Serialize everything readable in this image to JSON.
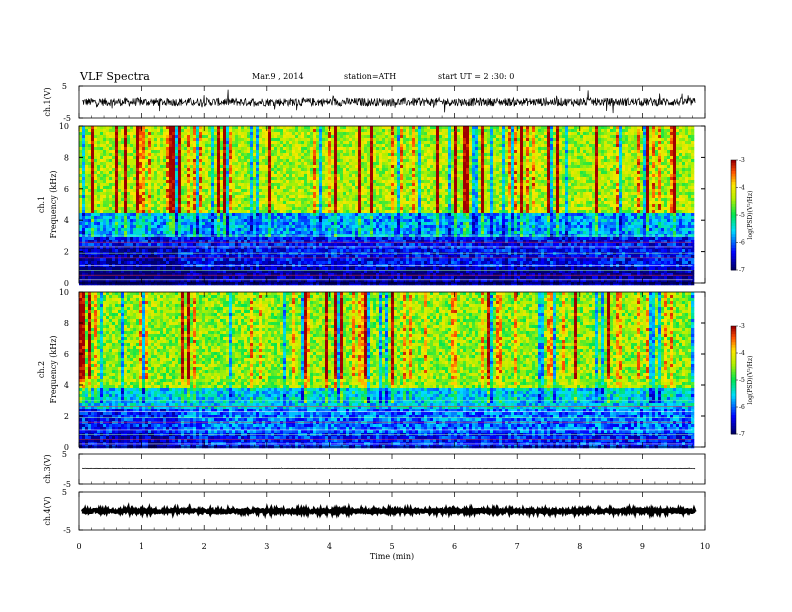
{
  "header": {
    "title": "VLF Spectra",
    "date": "Mar.9 , 2014",
    "station": "station=ATH",
    "start": "start UT = 2 :30: 0"
  },
  "chart_data": [
    {
      "type": "line",
      "panel": "ch1-waveform",
      "ylabel": "ch.1(V)",
      "ylim": [
        -5,
        5
      ],
      "yticks": [
        "5",
        "-5"
      ],
      "xlim": [
        0,
        10
      ],
      "trace": {
        "mean": 0,
        "amplitude": 1.3,
        "spike_amplitude": 3.0,
        "color": "#000000"
      }
    },
    {
      "type": "heatmap",
      "panel": "ch1-spectrogram",
      "ylabel": "ch.1\nFrequency (kHz)",
      "ylim": [
        0,
        10
      ],
      "yticks": [
        "0",
        "2",
        "4",
        "6",
        "8",
        "10"
      ],
      "xlim": [
        0,
        10
      ],
      "data_end_min": 9.8,
      "colorbar": {
        "label": "log(PSD)(V²/Hz)",
        "range": [
          -7,
          -3
        ],
        "ticks": [
          "-3",
          "-4",
          "-5",
          "-6",
          "-7"
        ]
      },
      "level_bands_kHz": [
        {
          "from": 0,
          "to": 1.2,
          "level": -6.8
        },
        {
          "from": 1.2,
          "to": 3.0,
          "level": -6.4
        },
        {
          "from": 3.0,
          "to": 4.5,
          "level": -5.8
        },
        {
          "from": 4.5,
          "to": 10,
          "level": -4.4
        }
      ],
      "step_change_min": 1.55
    },
    {
      "type": "heatmap",
      "panel": "ch2-spectrogram",
      "ylabel": "ch.2\nFrequency (kHz)",
      "ylim": [
        0,
        10
      ],
      "yticks": [
        "0",
        "2",
        "4",
        "6",
        "8",
        "10"
      ],
      "xlim": [
        0,
        10
      ],
      "data_end_min": 9.8,
      "colorbar": {
        "label": "log(PSD)(V²/Hz)",
        "range": [
          -7,
          -3
        ],
        "ticks": [
          "-3",
          "-4",
          "-5",
          "-6",
          "-7"
        ]
      },
      "level_bands_kHz": [
        {
          "from": 0,
          "to": 1.0,
          "level": -6.3
        },
        {
          "from": 1.0,
          "to": 2.5,
          "level": -6.0
        },
        {
          "from": 2.5,
          "to": 4.0,
          "level": -5.6
        },
        {
          "from": 4.0,
          "to": 10,
          "level": -4.5
        }
      ],
      "step_change_min": 1.55
    },
    {
      "type": "line",
      "panel": "ch3-waveform",
      "ylabel": "ch.3(V)",
      "ylim": [
        -5,
        5
      ],
      "yticks": [
        "5",
        "-5"
      ],
      "xlim": [
        0,
        10
      ],
      "trace": {
        "mean": 0.2,
        "amplitude": 0.05,
        "spike_amplitude": 0.2,
        "color": "#000000"
      }
    },
    {
      "type": "line",
      "panel": "ch4-waveform",
      "ylabel": "ch.4(V)",
      "ylim": [
        -5,
        5
      ],
      "yticks": [
        "5",
        "-5"
      ],
      "xlim": [
        0,
        10
      ],
      "xlabel": "Time (min)",
      "xticks": [
        "0",
        "1",
        "2",
        "3",
        "4",
        "5",
        "6",
        "7",
        "8",
        "9",
        "10"
      ],
      "trace": {
        "mean": 0,
        "amplitude": 0.35,
        "spike_amplitude": 0.5,
        "color": "#000000"
      }
    }
  ]
}
